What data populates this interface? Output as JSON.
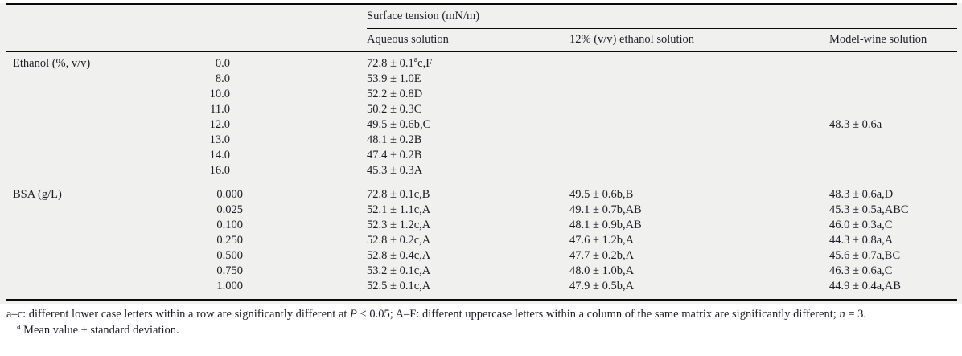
{
  "table": {
    "header": {
      "group": "Surface tension (mN/m)",
      "columns": [
        "Aqueous solution",
        "12% (v/v) ethanol solution",
        "Model-wine solution"
      ]
    },
    "ethanol": {
      "label": "Ethanol (%, v/v)",
      "rows": [
        {
          "dose": "0.0",
          "aqueous_pre": "72.8 ± 0.1",
          "aqueous_sup": "a",
          "aqueous_post": "c,F"
        },
        {
          "dose": "8.0",
          "aqueous": "53.9 ± 1.0E"
        },
        {
          "dose": "10.0",
          "aqueous": "52.2 ± 0.8D"
        },
        {
          "dose": "11.0",
          "aqueous": "50.2 ± 0.3C"
        },
        {
          "dose": "12.0",
          "aqueous": "49.5 ± 0.6b,C",
          "model_wine": "48.3 ± 0.6a"
        },
        {
          "dose": "13.0",
          "aqueous": "48.1 ± 0.2B"
        },
        {
          "dose": "14.0",
          "aqueous": "47.4 ± 0.2B"
        },
        {
          "dose": "16.0",
          "aqueous": "45.3 ± 0.3A"
        }
      ]
    },
    "bsa": {
      "label": "BSA (g/L)",
      "rows": [
        {
          "dose": "0.000",
          "aqueous": "72.8 ± 0.1c,B",
          "ethanol12": "49.5 ± 0.6b,B",
          "model_wine": "48.3 ± 0.6a,D"
        },
        {
          "dose": "0.025",
          "aqueous": "52.1 ± 1.1c,A",
          "ethanol12": "49.1 ± 0.7b,AB",
          "model_wine": "45.3 ± 0.5a,ABC"
        },
        {
          "dose": "0.100",
          "aqueous": "52.3 ± 1.2c,A",
          "ethanol12": "48.1 ± 0.9b,AB",
          "model_wine": "46.0 ± 0.3a,C"
        },
        {
          "dose": "0.250",
          "aqueous": "52.8 ± 0.2c,A",
          "ethanol12": "47.6 ± 1.2b,A",
          "model_wine": "44.3 ± 0.8a,A"
        },
        {
          "dose": "0.500",
          "aqueous": "52.8 ± 0.4c,A",
          "ethanol12": "47.7 ± 0.2b,A",
          "model_wine": "45.6 ± 0.7a,BC"
        },
        {
          "dose": "0.750",
          "aqueous": "53.2 ± 0.1c,A",
          "ethanol12": "48.0 ± 1.0b,A",
          "model_wine": "46.3 ± 0.6a,C"
        },
        {
          "dose": "1.000",
          "aqueous": "52.5 ± 0.1c,A",
          "ethanol12": "47.9 ± 0.5b,A",
          "model_wine": "44.9 ± 0.4a,AB"
        }
      ]
    },
    "footnotes": {
      "stat_note": {
        "part1": "a–c: different lower case letters within a row are significantly different at ",
        "p_symbol": "P",
        "part2": " < 0.05; A–F: different uppercase letters within a column of the same matrix are significantly different; ",
        "n_symbol": "n",
        "part3": " = 3."
      },
      "mean_note": {
        "marker": "a",
        "text": " Mean value ± standard deviation."
      }
    }
  },
  "colors": {
    "panel_background": "#f0f0ee",
    "rule": "#0a0a0a",
    "text": "#1c1c26"
  }
}
